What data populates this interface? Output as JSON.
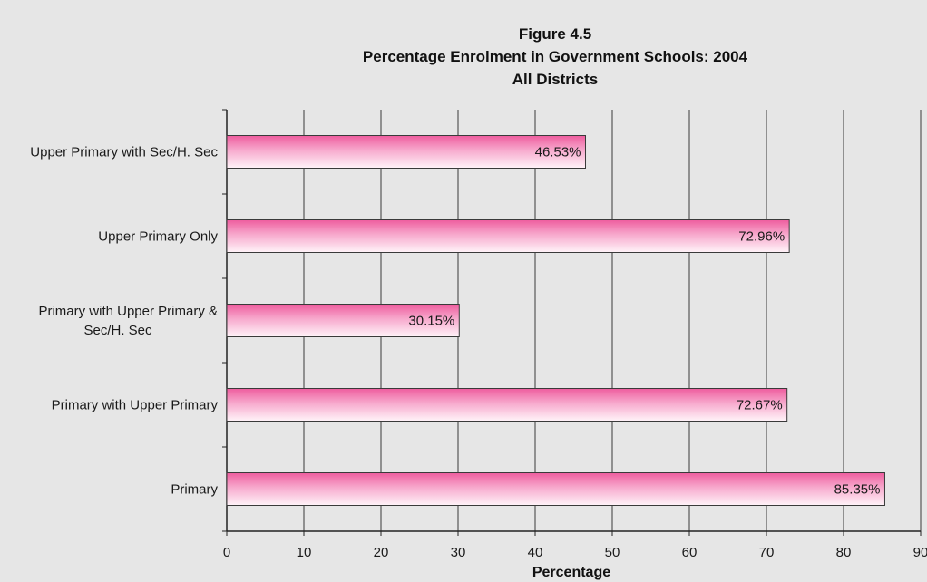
{
  "chart_data": {
    "type": "bar",
    "orientation": "horizontal",
    "title_lines": [
      "Figure 4.5",
      "Percentage Enrolment in Government Schools: 2004",
      "All Districts"
    ],
    "categories": [
      "Upper Primary with Sec/H. Sec",
      "Upper Primary Only",
      "Primary with Upper Primary & Sec/H. Sec",
      "Primary with Upper Primary",
      "Primary"
    ],
    "category_label_lines": [
      [
        "Upper Primary with Sec/H. Sec"
      ],
      [
        "Upper Primary Only"
      ],
      [
        "Primary with Upper Primary &",
        "Sec/H. Sec"
      ],
      [
        "Primary with Upper Primary"
      ],
      [
        "Primary"
      ]
    ],
    "values": [
      46.53,
      72.96,
      30.15,
      72.67,
      85.35
    ],
    "data_labels": [
      "46.53%",
      "72.96%",
      "30.15%",
      "72.67%",
      "85.35%"
    ],
    "xlabel": "Percentage",
    "ylabel": "",
    "xlim": [
      0,
      90
    ],
    "xticks": [
      0,
      10,
      20,
      30,
      40,
      50,
      60,
      70,
      80,
      90
    ],
    "grid": "vertical",
    "legend": "none",
    "colors": {
      "background": "#e6e6e6",
      "bar_top": "#ee5c9e",
      "bar_bottom": "#fff4f9",
      "bar_stroke": "#3a3a3a",
      "grid": "#3a3a3a",
      "text": "#1a1a1a"
    }
  }
}
